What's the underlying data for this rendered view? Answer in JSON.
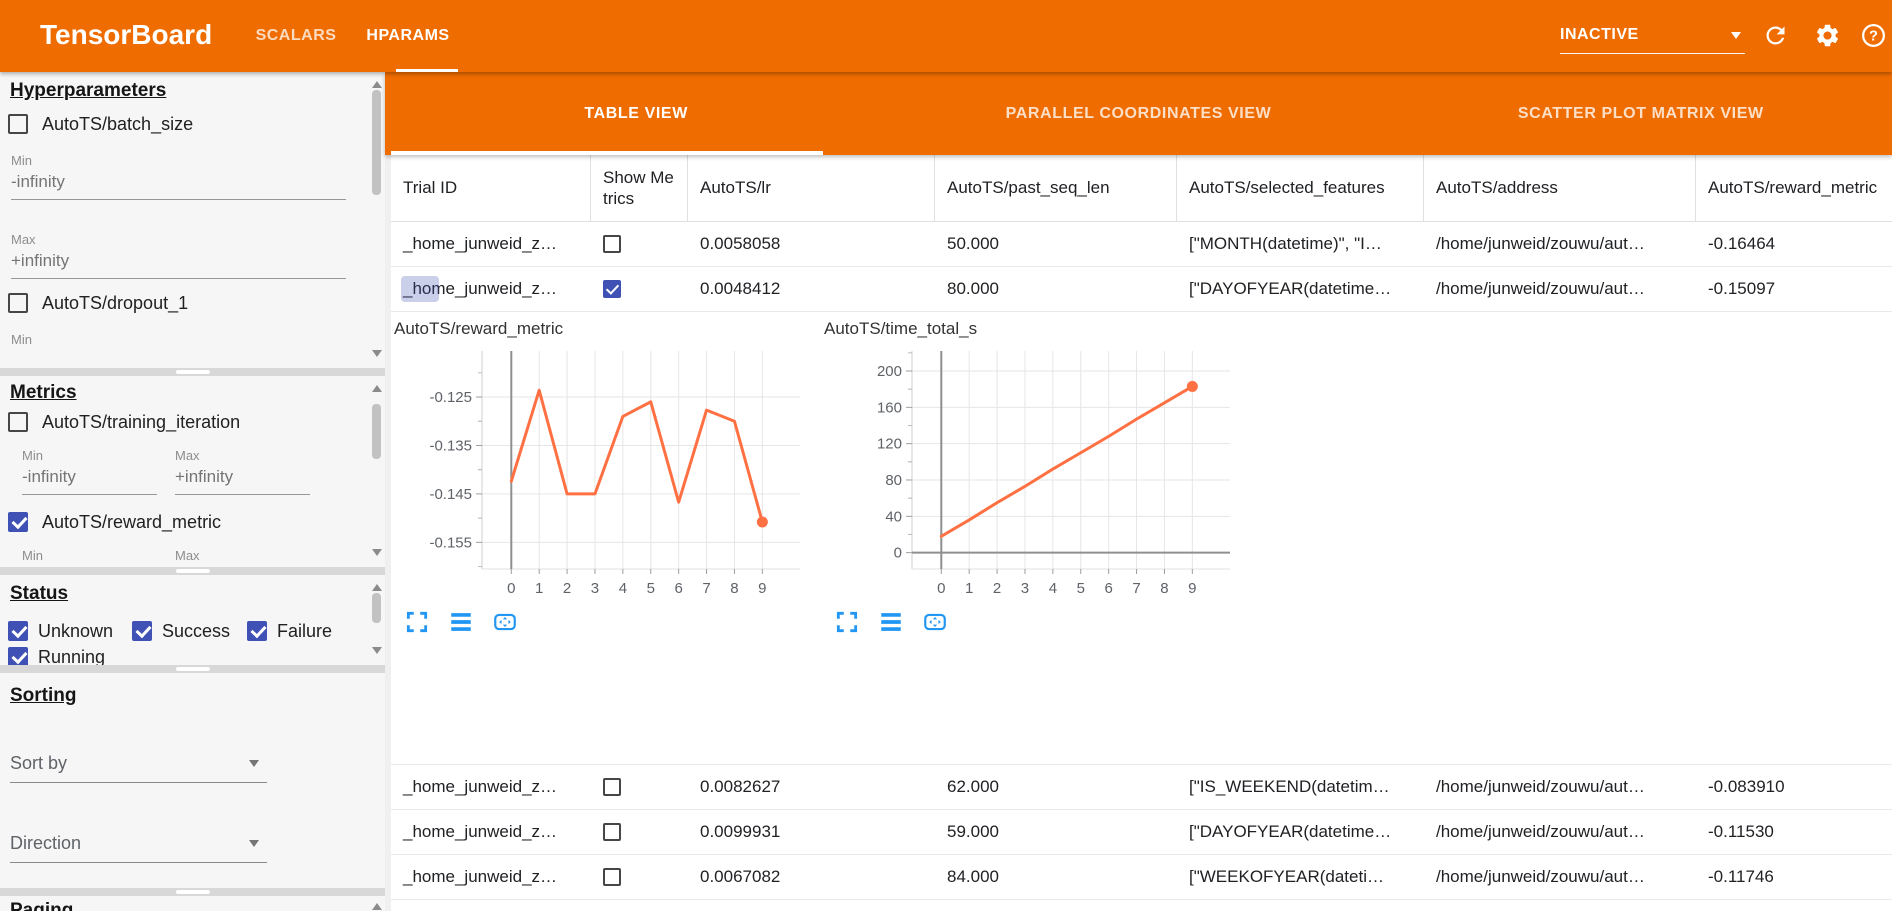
{
  "colors": {
    "header_orange": "#ef6c00",
    "checkbox_blue": "#3f51b5",
    "chart_line_orange": "#ff7043",
    "chart_tool_blue": "#2196f3"
  },
  "app_bar": {
    "title": "TensorBoard",
    "nav_tabs": [
      {
        "label": "SCALARS",
        "active": false
      },
      {
        "label": "HPARAMS",
        "active": true
      }
    ],
    "run_status": {
      "value": "INACTIVE"
    },
    "icons": [
      "refresh-icon",
      "settings-icon",
      "help-icon"
    ]
  },
  "sidebar": {
    "hyperparameters": {
      "title": "Hyperparameters",
      "items": [
        {
          "label": "AutoTS/batch_size",
          "checked": false,
          "fields": [
            {
              "label": "Min",
              "value": "-infinity"
            },
            {
              "label": "Max",
              "value": "+infinity"
            }
          ]
        },
        {
          "label": "AutoTS/dropout_1",
          "checked": false,
          "fields": [
            {
              "label": "Min",
              "value": ""
            }
          ]
        }
      ]
    },
    "metrics": {
      "title": "Metrics",
      "items": [
        {
          "label": "AutoTS/training_iteration",
          "checked": false,
          "fields": [
            {
              "label": "Min",
              "value": "-infinity"
            },
            {
              "label": "Max",
              "value": "+infinity"
            }
          ]
        },
        {
          "label": "AutoTS/reward_metric",
          "checked": true,
          "fields": [
            {
              "label": "Min",
              "value": ""
            },
            {
              "label": "Max",
              "value": ""
            }
          ]
        }
      ]
    },
    "status": {
      "title": "Status",
      "options": [
        {
          "label": "Unknown",
          "checked": true
        },
        {
          "label": "Success",
          "checked": true
        },
        {
          "label": "Failure",
          "checked": true
        },
        {
          "label": "Running",
          "checked": true
        }
      ]
    },
    "sorting": {
      "title": "Sorting",
      "sort_by": {
        "label": "Sort by"
      },
      "direction": {
        "label": "Direction"
      }
    },
    "paging": {
      "title": "Paging"
    }
  },
  "main": {
    "view_tabs": [
      {
        "label": "TABLE VIEW",
        "active": true
      },
      {
        "label": "PARALLEL COORDINATES VIEW",
        "active": false
      },
      {
        "label": "SCATTER PLOT MATRIX VIEW",
        "active": false
      }
    ],
    "table": {
      "columns": [
        "Trial ID",
        "Show Metrics",
        "AutoTS/lr",
        "AutoTS/past_seq_len",
        "AutoTS/selected_features",
        "AutoTS/address",
        "AutoTS/reward_metric"
      ],
      "rows_top": [
        {
          "trial_id": "_home_junweid_z…",
          "show_metrics": false,
          "lr": "0.0058058",
          "past_seq_len": "50.000",
          "selected_features": "[\"MONTH(datetime)\", \"I…",
          "address": "/home/junweid/zouwu/aut…",
          "reward_metric": "-0.16464"
        },
        {
          "trial_id": "_home_junweid_z…",
          "show_metrics": true,
          "lr": "0.0048412",
          "past_seq_len": "80.000",
          "selected_features": "[\"DAYOFYEAR(datetime…",
          "address": "/home/junweid/zouwu/aut…",
          "reward_metric": "-0.15097"
        }
      ],
      "rows_bottom": [
        {
          "trial_id": "_home_junweid_z…",
          "show_metrics": false,
          "lr": "0.0082627",
          "past_seq_len": "62.000",
          "selected_features": "[\"IS_WEEKEND(datetim…",
          "address": "/home/junweid/zouwu/aut…",
          "reward_metric": "-0.083910"
        },
        {
          "trial_id": "_home_junweid_z…",
          "show_metrics": false,
          "lr": "0.0099931",
          "past_seq_len": "59.000",
          "selected_features": "[\"DAYOFYEAR(datetime…",
          "address": "/home/junweid/zouwu/aut…",
          "reward_metric": "-0.11530"
        },
        {
          "trial_id": "_home_junweid_z…",
          "show_metrics": false,
          "lr": "0.0067082",
          "past_seq_len": "84.000",
          "selected_features": "[\"WEEKOFYEAR(dateti…",
          "address": "/home/junweid/zouwu/aut…",
          "reward_metric": "-0.11746"
        }
      ]
    }
  },
  "chart_data": [
    {
      "type": "line",
      "title": "AutoTS/reward_metric",
      "x": [
        0,
        1,
        2,
        3,
        4,
        5,
        6,
        7,
        8,
        9
      ],
      "y": [
        -0.1424,
        -0.1236,
        -0.145,
        -0.145,
        -0.129,
        -0.126,
        -0.1467,
        -0.1277,
        -0.13,
        -0.1508
      ],
      "xticks": [
        0,
        1,
        2,
        3,
        4,
        5,
        6,
        7,
        8,
        9
      ],
      "yticks": [
        -0.125,
        -0.135,
        -0.145,
        -0.155
      ],
      "ytick_labels": [
        "-0.125",
        "-0.135",
        "-0.145",
        "-0.155"
      ],
      "xlim": [
        -1.05,
        10.35
      ],
      "ylim": [
        -0.1605,
        -0.1155
      ],
      "xlabel": "",
      "ylabel": "",
      "grid": true,
      "legend": "none",
      "zero_axis_x": true,
      "zero_axis_y": false,
      "line_color": "#ff7043",
      "end_marker": true
    },
    {
      "type": "line",
      "title": "AutoTS/time_total_s",
      "x": [
        0,
        1,
        2,
        3,
        4,
        5,
        6,
        7,
        8,
        9
      ],
      "y": [
        18,
        36,
        55,
        73,
        92,
        110,
        128,
        147,
        165,
        183
      ],
      "xticks": [
        0,
        1,
        2,
        3,
        4,
        5,
        6,
        7,
        8,
        9
      ],
      "yticks": [
        0,
        40,
        80,
        120,
        160,
        200
      ],
      "ytick_labels": [
        "0",
        "40",
        "80",
        "120",
        "160",
        "200"
      ],
      "xlim": [
        -1.05,
        10.35
      ],
      "ylim": [
        -18,
        222
      ],
      "xlabel": "",
      "ylabel": "",
      "grid": true,
      "legend": "none",
      "zero_axis_x": true,
      "zero_axis_y": true,
      "line_color": "#ff7043",
      "end_marker": true
    }
  ]
}
